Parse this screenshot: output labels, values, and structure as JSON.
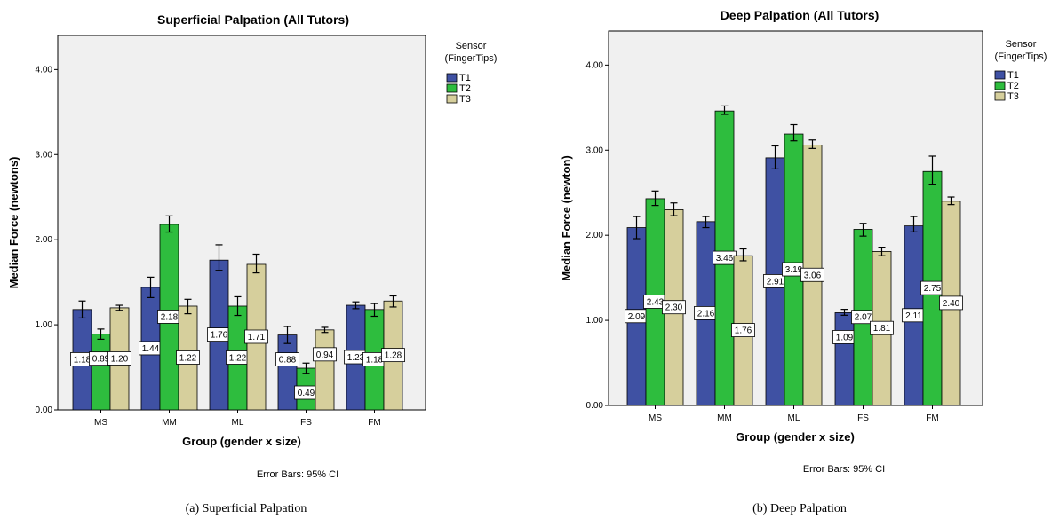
{
  "chart_data": [
    {
      "type": "bar",
      "title": "Superficial Palpation (All Tutors)",
      "xlabel": "Group (gender x size)",
      "ylabel": "Median Force (newtons)",
      "categories": [
        "MS",
        "MM",
        "ML",
        "FS",
        "FM"
      ],
      "ylim": [
        0,
        4.4
      ],
      "yticks": [
        "0.00",
        "1.00",
        "2.00",
        "3.00",
        "4.00"
      ],
      "legend_title": "Sensor (FingerTips)",
      "legend_position": "right",
      "series": [
        {
          "name": "T1",
          "color": "#3f51a3",
          "values": [
            1.18,
            1.44,
            1.76,
            0.88,
            1.23
          ],
          "ci": [
            [
              1.08,
              1.28
            ],
            [
              1.32,
              1.56
            ],
            [
              1.64,
              1.94
            ],
            [
              0.78,
              0.98
            ],
            [
              1.19,
              1.27
            ]
          ],
          "labels": [
            "1.18",
            "1.44",
            "1.76",
            "0.88",
            "1.23"
          ]
        },
        {
          "name": "T2",
          "color": "#2ebd3e",
          "values": [
            0.89,
            2.18,
            1.22,
            0.49,
            1.18
          ],
          "ci": [
            [
              0.83,
              0.95
            ],
            [
              2.09,
              2.28
            ],
            [
              1.11,
              1.33
            ],
            [
              0.43,
              0.55
            ],
            [
              1.1,
              1.25
            ]
          ],
          "labels": [
            "0.89",
            "2.18",
            "1.22",
            "0.49",
            "1.18"
          ]
        },
        {
          "name": "T3",
          "color": "#d6cf9c",
          "values": [
            1.2,
            1.22,
            1.71,
            0.94,
            1.28
          ],
          "ci": [
            [
              1.17,
              1.23
            ],
            [
              1.13,
              1.3
            ],
            [
              1.61,
              1.83
            ],
            [
              0.91,
              0.97
            ],
            [
              1.21,
              1.34
            ]
          ],
          "labels": [
            "1.20",
            "1.22",
            "1.71",
            "0.94",
            "1.28"
          ]
        }
      ],
      "note": "Error Bars: 95% CI",
      "caption": "(a) Superficial Palpation"
    },
    {
      "type": "bar",
      "title": "Deep Palpation (All Tutors)",
      "xlabel": "Group (gender x size)",
      "ylabel": "Median Force (newton)",
      "categories": [
        "MS",
        "MM",
        "ML",
        "FS",
        "FM"
      ],
      "ylim": [
        0,
        4.4
      ],
      "yticks": [
        "0.00",
        "1.00",
        "2.00",
        "3.00",
        "4.00"
      ],
      "legend_title": "Sensor (FingerTips)",
      "legend_position": "right",
      "series": [
        {
          "name": "T1",
          "color": "#3f51a3",
          "values": [
            2.09,
            2.16,
            2.91,
            1.09,
            2.11
          ],
          "ci": [
            [
              1.96,
              2.22
            ],
            [
              2.09,
              2.22
            ],
            [
              2.78,
              3.05
            ],
            [
              1.06,
              1.13
            ],
            [
              2.04,
              2.22
            ]
          ],
          "labels": [
            "2.09",
            "2.16",
            "2.91",
            "1.09",
            "2.11"
          ]
        },
        {
          "name": "T2",
          "color": "#2ebd3e",
          "values": [
            2.43,
            3.46,
            3.19,
            2.07,
            2.75
          ],
          "ci": [
            [
              2.35,
              2.52
            ],
            [
              3.42,
              3.52
            ],
            [
              3.11,
              3.3
            ],
            [
              1.99,
              2.14
            ],
            [
              2.6,
              2.93
            ]
          ],
          "labels": [
            "2.43",
            "3.46",
            "3.19",
            "2.07",
            "2.75"
          ]
        },
        {
          "name": "T3",
          "color": "#d6cf9c",
          "values": [
            2.3,
            1.76,
            3.06,
            1.81,
            2.4
          ],
          "ci": [
            [
              2.23,
              2.38
            ],
            [
              1.7,
              1.84
            ],
            [
              3.02,
              3.12
            ],
            [
              1.76,
              1.86
            ],
            [
              2.36,
              2.45
            ]
          ],
          "labels": [
            "2.30",
            "1.76",
            "3.06",
            "1.81",
            "2.40"
          ]
        }
      ],
      "note": "Error Bars: 95% CI",
      "caption": "(b) Deep Palpation"
    }
  ]
}
